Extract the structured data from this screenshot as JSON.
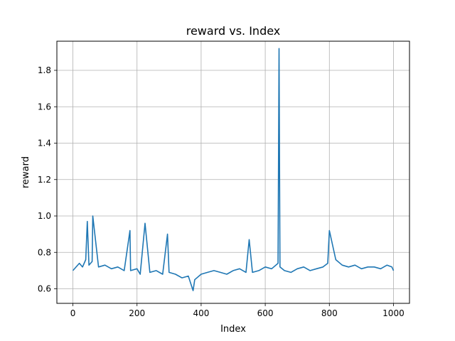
{
  "chart_data": {
    "type": "line",
    "title": "reward vs. Index",
    "xlabel": "Index",
    "ylabel": "reward",
    "xlim": [
      -50,
      1050
    ],
    "ylim": [
      0.52,
      1.96
    ],
    "grid": true,
    "legend": "none",
    "x_ticks": [
      0,
      200,
      400,
      600,
      800,
      1000
    ],
    "y_ticks": [
      0.6,
      0.8,
      1.0,
      1.2,
      1.4,
      1.6,
      1.8
    ],
    "x_tick_labels": [
      "0",
      "200",
      "400",
      "600",
      "800",
      "1000"
    ],
    "y_tick_labels": [
      "0.6",
      "0.8",
      "1.0",
      "1.2",
      "1.4",
      "1.6",
      "1.8"
    ],
    "series": [
      {
        "color": "#1f77b4",
        "x": [
          0,
          20,
          30,
          40,
          45,
          50,
          60,
          62,
          80,
          100,
          120,
          140,
          160,
          178,
          180,
          200,
          210,
          225,
          240,
          260,
          280,
          295,
          300,
          320,
          340,
          360,
          375,
          380,
          400,
          420,
          440,
          460,
          480,
          500,
          520,
          540,
          550,
          560,
          580,
          600,
          620,
          640,
          643,
          646,
          660,
          680,
          700,
          720,
          740,
          760,
          780,
          795,
          800,
          820,
          840,
          860,
          880,
          900,
          920,
          940,
          960,
          980,
          995,
          1000
        ],
        "y": [
          0.7,
          0.74,
          0.72,
          0.76,
          0.97,
          0.73,
          0.75,
          1.0,
          0.72,
          0.73,
          0.71,
          0.72,
          0.7,
          0.92,
          0.7,
          0.71,
          0.68,
          0.96,
          0.69,
          0.7,
          0.68,
          0.9,
          0.69,
          0.68,
          0.66,
          0.67,
          0.59,
          0.65,
          0.68,
          0.69,
          0.7,
          0.69,
          0.68,
          0.7,
          0.71,
          0.69,
          0.87,
          0.69,
          0.7,
          0.72,
          0.71,
          0.74,
          1.92,
          0.72,
          0.7,
          0.69,
          0.71,
          0.72,
          0.7,
          0.71,
          0.72,
          0.74,
          0.92,
          0.76,
          0.73,
          0.72,
          0.73,
          0.71,
          0.72,
          0.72,
          0.71,
          0.73,
          0.72,
          0.7
        ]
      }
    ]
  }
}
